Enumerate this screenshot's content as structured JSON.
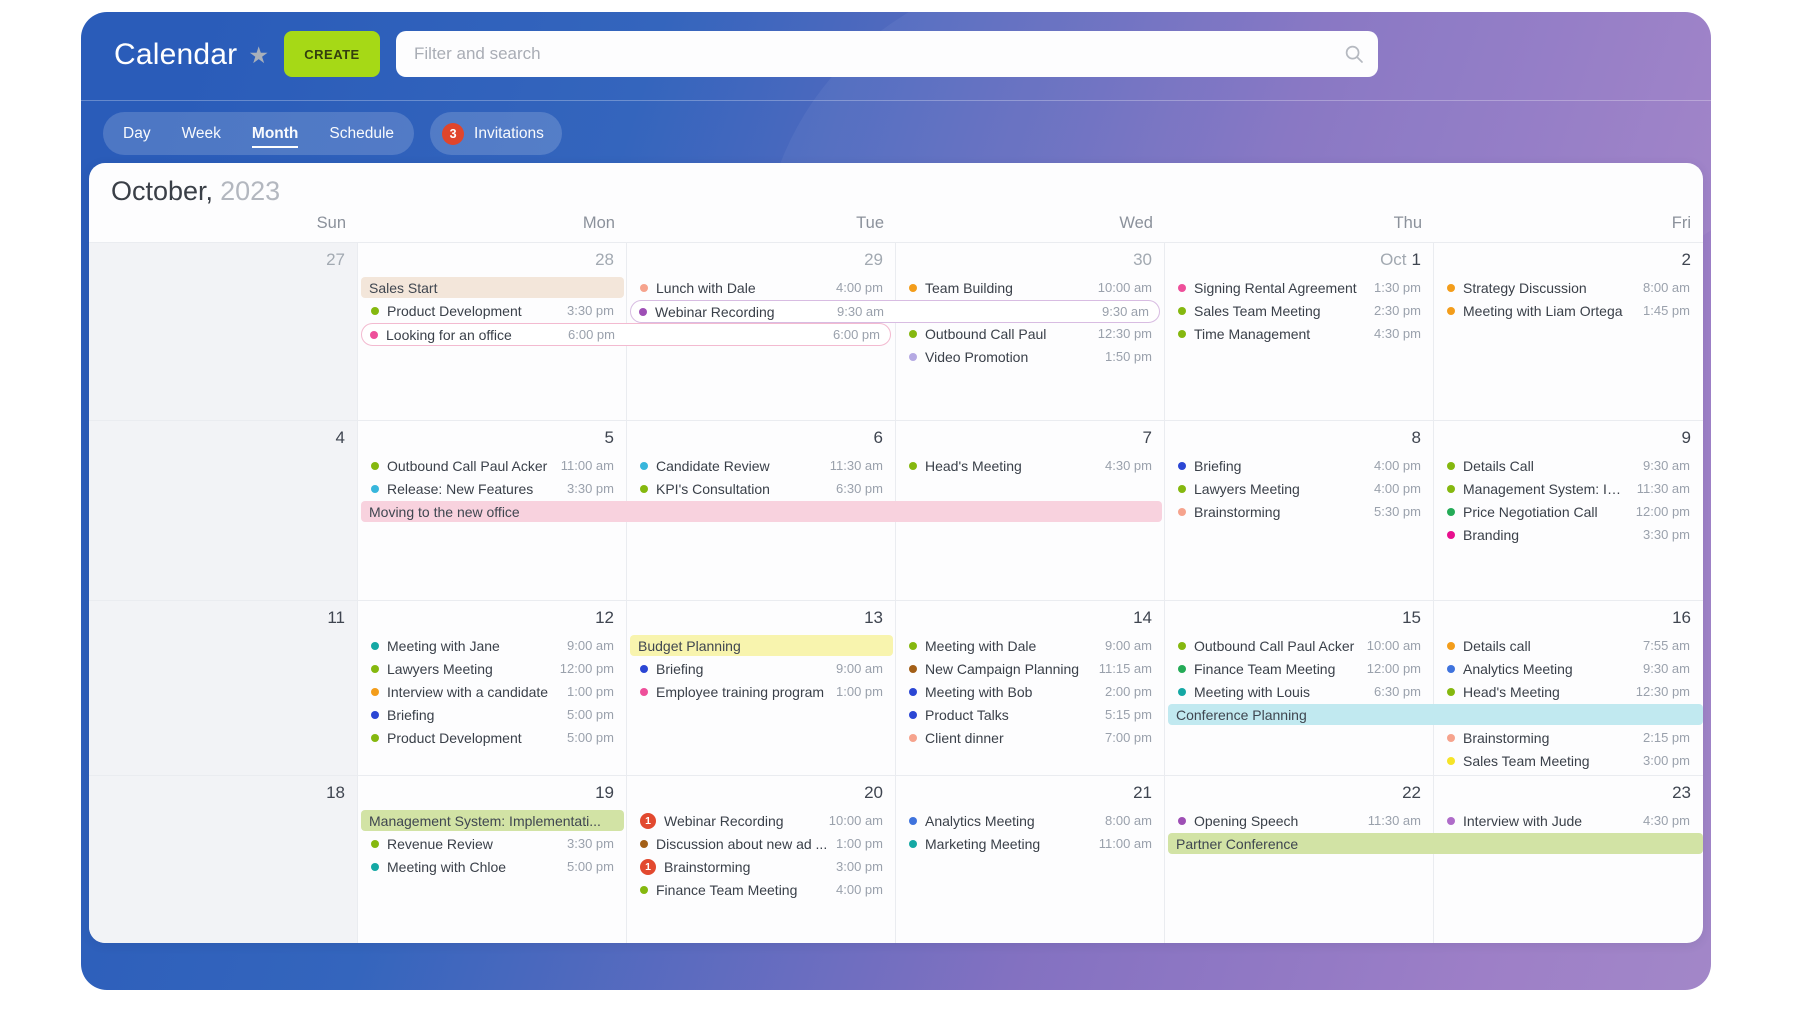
{
  "header": {
    "app_title": "Calendar",
    "create_label": "CREATE",
    "search_placeholder": "Filter and search"
  },
  "tabs": [
    {
      "label": "Day",
      "active": false
    },
    {
      "label": "Week",
      "active": false
    },
    {
      "label": "Month",
      "active": true
    },
    {
      "label": "Schedule",
      "active": false
    }
  ],
  "invitations": {
    "count": "3",
    "label": "Invitations"
  },
  "month_title": {
    "month": "October,",
    "year": "2023"
  },
  "day_headers": [
    "Sun",
    "Mon",
    "Tue",
    "Wed",
    "Thu",
    "Fri"
  ],
  "colors": {
    "accent_create": "#a6d916",
    "badge_red": "#e0452c",
    "notification_red": "#e2492f",
    "dots": {
      "olive": "#85b80f",
      "teal": "#14a8a4",
      "cyan": "#37b6dc",
      "blue": "#2b46d4",
      "azure": "#3f73dd",
      "green": "#24ab57",
      "magenta": "#e8108e",
      "pink": "#ee4f9a",
      "salmon": "#f6a38d",
      "purple": "#9e4fb5",
      "violet": "#af6cc9",
      "lavender": "#b5a9e3",
      "orange": "#f39d1b",
      "brown": "#a35f17",
      "yellow": "#f6e428"
    },
    "fills": {
      "beige": "#f3e6da",
      "pink": "#f8d2de",
      "yellow": "#f8f4ae",
      "cyan": "#c1e9f0",
      "green": "#d2e3a5"
    },
    "borders": {
      "pink": "#f3bad0",
      "purple": "#d8bce2"
    }
  },
  "weeks": [
    {
      "dates": [
        {
          "col": 0,
          "num": "27",
          "muted": true
        },
        {
          "col": 1,
          "num": "28",
          "muted": true
        },
        {
          "col": 2,
          "num": "29",
          "muted": true
        },
        {
          "col": 3,
          "num": "30",
          "muted": true
        },
        {
          "col": 4,
          "prefix": "Oct",
          "num": "1",
          "muted": false
        },
        {
          "col": 5,
          "num": "2",
          "muted": false
        }
      ],
      "events": [
        {
          "type": "banner",
          "col": 1,
          "span": 1,
          "slot": 0,
          "title": "Sales Start",
          "fill": "beige"
        },
        {
          "type": "event",
          "col": 1,
          "slot": 1,
          "title": "Product Development",
          "time": "3:30 pm",
          "color": "olive"
        },
        {
          "type": "span_outline",
          "col": 1,
          "span": 2,
          "slot": 2,
          "title": "Looking for an office",
          "time": "6:00 pm",
          "end_time": "6:00 pm",
          "color": "pink",
          "border": "pink"
        },
        {
          "type": "event",
          "col": 2,
          "slot": 0,
          "title": "Lunch with Dale",
          "time": "4:00 pm",
          "color": "salmon"
        },
        {
          "type": "span_outline",
          "col": 2,
          "span": 2,
          "slot": 1,
          "title": "Webinar Recording",
          "time": "9:30 am",
          "end_time": "9:30 am",
          "color": "purple",
          "border": "purple"
        },
        {
          "type": "event",
          "col": 3,
          "slot": 0,
          "title": "Team Building",
          "time": "10:00 am",
          "color": "orange"
        },
        {
          "type": "event",
          "col": 3,
          "slot": 2,
          "title": "Outbound Call Paul",
          "time": "12:30 pm",
          "color": "olive"
        },
        {
          "type": "event",
          "col": 3,
          "slot": 3,
          "title": "Video Promotion",
          "time": "1:50 pm",
          "color": "lavender"
        },
        {
          "type": "event",
          "col": 4,
          "slot": 0,
          "title": "Signing Rental Agreement",
          "time": "1:30 pm",
          "color": "pink"
        },
        {
          "type": "event",
          "col": 4,
          "slot": 1,
          "title": "Sales Team Meeting",
          "time": "2:30 pm",
          "color": "olive"
        },
        {
          "type": "event",
          "col": 4,
          "slot": 2,
          "title": "Time Management",
          "time": "4:30 pm",
          "color": "olive"
        },
        {
          "type": "event",
          "col": 5,
          "slot": 0,
          "title": "Strategy Discussion",
          "time": "8:00 am",
          "color": "orange"
        },
        {
          "type": "event",
          "col": 5,
          "slot": 1,
          "title": "Meeting with Liam Ortega",
          "time": "1:45 pm",
          "color": "orange"
        }
      ]
    },
    {
      "dates": [
        {
          "col": 0,
          "num": "4",
          "muted": false
        },
        {
          "col": 1,
          "num": "5",
          "muted": false
        },
        {
          "col": 2,
          "num": "6",
          "muted": false
        },
        {
          "col": 3,
          "num": "7",
          "muted": false
        },
        {
          "col": 4,
          "num": "8",
          "muted": false
        },
        {
          "col": 5,
          "num": "9",
          "muted": false
        }
      ],
      "events": [
        {
          "type": "event",
          "col": 1,
          "slot": 0,
          "title": "Outbound Call Paul Acker",
          "time": "11:00 am",
          "color": "olive"
        },
        {
          "type": "event",
          "col": 1,
          "slot": 1,
          "title": "Release: New Features",
          "time": "3:30 pm",
          "color": "cyan"
        },
        {
          "type": "banner",
          "col": 1,
          "span": 3,
          "slot": 2,
          "title": "Moving to the new office",
          "fill": "pink"
        },
        {
          "type": "event",
          "col": 2,
          "slot": 0,
          "title": "Candidate Review",
          "time": "11:30 am",
          "color": "cyan"
        },
        {
          "type": "event",
          "col": 2,
          "slot": 1,
          "title": "KPI's Consultation",
          "time": "6:30 pm",
          "color": "olive"
        },
        {
          "type": "event",
          "col": 3,
          "slot": 0,
          "title": "Head's Meeting",
          "time": "4:30 pm",
          "color": "olive"
        },
        {
          "type": "event",
          "col": 4,
          "slot": 0,
          "title": "Briefing",
          "time": "4:00 pm",
          "color": "blue"
        },
        {
          "type": "event",
          "col": 4,
          "slot": 1,
          "title": "Lawyers Meeting",
          "time": "4:00 pm",
          "color": "olive"
        },
        {
          "type": "event",
          "col": 4,
          "slot": 2,
          "title": "Brainstorming",
          "time": "5:30 pm",
          "color": "salmon"
        },
        {
          "type": "event",
          "col": 5,
          "slot": 0,
          "title": "Details Call",
          "time": "9:30 am",
          "color": "olive"
        },
        {
          "type": "event",
          "col": 5,
          "slot": 1,
          "title": "Management System: Im...",
          "time": "11:30 am",
          "color": "olive"
        },
        {
          "type": "event",
          "col": 5,
          "slot": 2,
          "title": "Price Negotiation Call",
          "time": "12:00 pm",
          "color": "green"
        },
        {
          "type": "event",
          "col": 5,
          "slot": 3,
          "title": "Branding",
          "time": "3:30 pm",
          "color": "magenta"
        }
      ]
    },
    {
      "dates": [
        {
          "col": 0,
          "num": "11",
          "muted": false
        },
        {
          "col": 1,
          "num": "12",
          "muted": false
        },
        {
          "col": 2,
          "num": "13",
          "muted": false
        },
        {
          "col": 3,
          "num": "14",
          "muted": false
        },
        {
          "col": 4,
          "num": "15",
          "muted": false
        },
        {
          "col": 5,
          "num": "16",
          "muted": false
        }
      ],
      "events": [
        {
          "type": "event",
          "col": 1,
          "slot": 0,
          "title": "Meeting with Jane",
          "time": "9:00 am",
          "color": "teal"
        },
        {
          "type": "event",
          "col": 1,
          "slot": 1,
          "title": "Lawyers Meeting",
          "time": "12:00 pm",
          "color": "olive"
        },
        {
          "type": "event",
          "col": 1,
          "slot": 2,
          "title": "Interview with a candidate",
          "time": "1:00 pm",
          "color": "orange"
        },
        {
          "type": "event",
          "col": 1,
          "slot": 3,
          "title": "Briefing",
          "time": "5:00 pm",
          "color": "blue"
        },
        {
          "type": "event",
          "col": 1,
          "slot": 4,
          "title": "Product Development",
          "time": "5:00 pm",
          "color": "olive"
        },
        {
          "type": "banner",
          "col": 2,
          "span": 1,
          "slot": 0,
          "title": "Budget Planning",
          "fill": "yellow"
        },
        {
          "type": "event",
          "col": 2,
          "slot": 1,
          "title": "Briefing",
          "time": "9:00 am",
          "color": "blue"
        },
        {
          "type": "event",
          "col": 2,
          "slot": 2,
          "title": "Employee training program",
          "time": "1:00 pm",
          "color": "pink"
        },
        {
          "type": "event",
          "col": 3,
          "slot": 0,
          "title": "Meeting with Dale",
          "time": "9:00 am",
          "color": "olive"
        },
        {
          "type": "event",
          "col": 3,
          "slot": 1,
          "title": "New Campaign Planning",
          "time": "11:15 am",
          "color": "brown"
        },
        {
          "type": "event",
          "col": 3,
          "slot": 2,
          "title": "Meeting with Bob",
          "time": "2:00 pm",
          "color": "blue"
        },
        {
          "type": "event",
          "col": 3,
          "slot": 3,
          "title": "Product Talks",
          "time": "5:15 pm",
          "color": "blue"
        },
        {
          "type": "event",
          "col": 3,
          "slot": 4,
          "title": "Client dinner",
          "time": "7:00 pm",
          "color": "salmon"
        },
        {
          "type": "event",
          "col": 4,
          "slot": 0,
          "title": "Outbound Call Paul Acker",
          "time": "10:00 am",
          "color": "olive"
        },
        {
          "type": "event",
          "col": 4,
          "slot": 1,
          "title": "Finance Team Meeting",
          "time": "12:00 pm",
          "color": "green"
        },
        {
          "type": "event",
          "col": 4,
          "slot": 2,
          "title": "Meeting with Louis",
          "time": "6:30 pm",
          "color": "teal"
        },
        {
          "type": "banner",
          "col": 4,
          "span": 2,
          "slot": 3,
          "title": "Conference Planning",
          "fill": "cyan",
          "to_edge": true
        },
        {
          "type": "event",
          "col": 5,
          "slot": 0,
          "title": "Details call",
          "time": "7:55 am",
          "color": "orange"
        },
        {
          "type": "event",
          "col": 5,
          "slot": 1,
          "title": "Analytics Meeting",
          "time": "9:30 am",
          "color": "azure"
        },
        {
          "type": "event",
          "col": 5,
          "slot": 2,
          "title": "Head's Meeting",
          "time": "12:30 pm",
          "color": "olive"
        },
        {
          "type": "event",
          "col": 5,
          "slot": 4,
          "title": "Brainstorming",
          "time": "2:15 pm",
          "color": "salmon"
        },
        {
          "type": "event",
          "col": 5,
          "slot": 5,
          "title": "Sales Team Meeting",
          "time": "3:00 pm",
          "color": "yellow"
        }
      ]
    },
    {
      "dates": [
        {
          "col": 0,
          "num": "18",
          "muted": false
        },
        {
          "col": 1,
          "num": "19",
          "muted": false
        },
        {
          "col": 2,
          "num": "20",
          "muted": false
        },
        {
          "col": 3,
          "num": "21",
          "muted": false
        },
        {
          "col": 4,
          "num": "22",
          "muted": false
        },
        {
          "col": 5,
          "num": "23",
          "muted": false
        }
      ],
      "events": [
        {
          "type": "banner",
          "col": 1,
          "span": 1,
          "slot": 0,
          "title": "Management System: Implementati...",
          "fill": "green"
        },
        {
          "type": "event",
          "col": 1,
          "slot": 1,
          "title": "Revenue Review",
          "time": "3:30 pm",
          "color": "olive"
        },
        {
          "type": "event",
          "col": 1,
          "slot": 2,
          "title": "Meeting with Chloe",
          "time": "5:00 pm",
          "color": "teal"
        },
        {
          "type": "event",
          "col": 2,
          "slot": 0,
          "title": "Webinar Recording",
          "time": "10:00 am",
          "badge": "1"
        },
        {
          "type": "event",
          "col": 2,
          "slot": 1,
          "title": "Discussion about new ad ...",
          "time": "1:00 pm",
          "color": "brown"
        },
        {
          "type": "event",
          "col": 2,
          "slot": 2,
          "title": "Brainstorming",
          "time": "3:00 pm",
          "badge": "1"
        },
        {
          "type": "event",
          "col": 2,
          "slot": 3,
          "title": "Finance Team Meeting",
          "time": "4:00 pm",
          "color": "olive"
        },
        {
          "type": "event",
          "col": 3,
          "slot": 0,
          "title": "Analytics Meeting",
          "time": "8:00 am",
          "color": "azure"
        },
        {
          "type": "event",
          "col": 3,
          "slot": 1,
          "title": "Marketing Meeting",
          "time": "11:00 am",
          "color": "teal"
        },
        {
          "type": "event",
          "col": 4,
          "slot": 0,
          "title": "Opening Speech",
          "time": "11:30 am",
          "color": "purple"
        },
        {
          "type": "banner",
          "col": 4,
          "span": 2,
          "slot": 1,
          "title": "Partner Conference",
          "fill": "green",
          "to_edge": true
        },
        {
          "type": "event",
          "col": 5,
          "slot": 0,
          "title": "Interview with Jude",
          "time": "4:30 pm",
          "color": "violet"
        }
      ]
    }
  ]
}
